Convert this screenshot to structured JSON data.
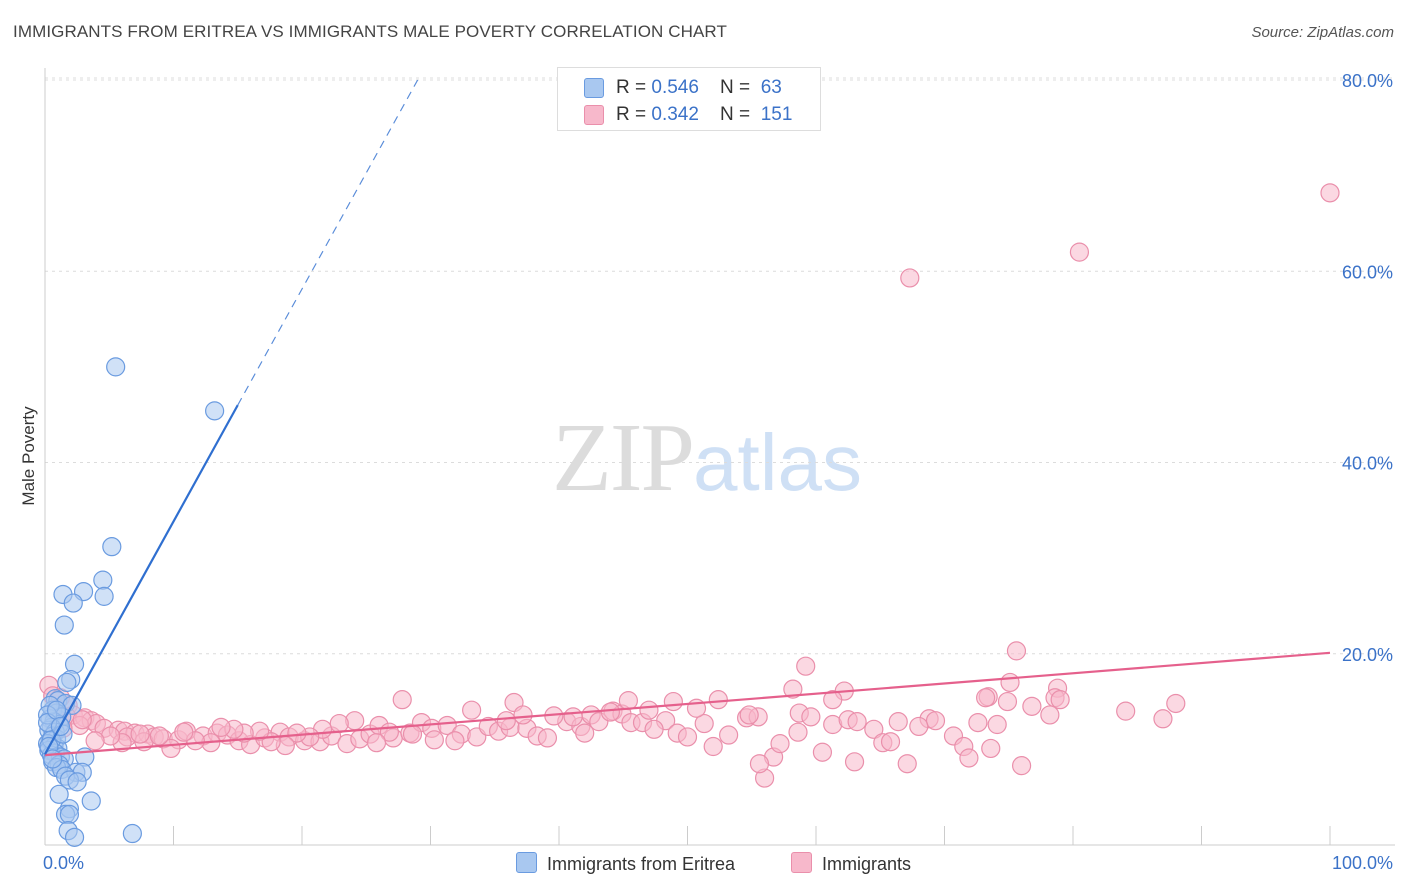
{
  "title": "IMMIGRANTS FROM ERITREA VS IMMIGRANTS MALE POVERTY CORRELATION CHART",
  "source": "Source: ZipAtlas.com",
  "watermark": {
    "zip": "ZIP",
    "atlas": "atlas"
  },
  "legend": [
    {
      "r_label": "R = ",
      "r_value": "0.546",
      "n_label": "N = ",
      "n_value": "63",
      "color": "#a9c8f0",
      "border": "#6a9be0"
    },
    {
      "r_label": "R = ",
      "r_value": "0.342",
      "n_label": "N = ",
      "n_value": "151",
      "color": "#f7b8cb",
      "border": "#ea8fab"
    }
  ],
  "bottom_legend": [
    {
      "label": "Immigrants from Eritrea",
      "color": "#a9c8f0",
      "border": "#6a9be0"
    },
    {
      "label": "Immigrants",
      "color": "#f7b8cb",
      "border": "#ea8fab"
    }
  ],
  "chart_data": {
    "type": "scatter",
    "title": "IMMIGRANTS FROM ERITREA VS IMMIGRANTS MALE POVERTY CORRELATION CHART",
    "xlabel": "",
    "ylabel": "Male Poverty",
    "xlim": [
      0,
      100
    ],
    "ylim": [
      0,
      80
    ],
    "x_tick_labels": [
      "0.0%",
      "100.0%"
    ],
    "y_ticks": [
      20,
      40,
      60,
      80
    ],
    "y_tick_labels": [
      "20.0%",
      "40.0%",
      "60.0%",
      "80.0%"
    ],
    "grid": "horizontal dashed",
    "series": [
      {
        "name": "Immigrants from Eritrea",
        "color": "#a9c8f0",
        "stroke": "#6a9be0",
        "line_color": "#2f6fd0",
        "trend": {
          "x0": 0,
          "y0": 9.5,
          "x1": 15,
          "y1": 46,
          "dashed_to": [
            29,
            80
          ]
        },
        "points": [
          [
            5.5,
            50
          ],
          [
            13.2,
            45.4
          ],
          [
            5.2,
            31.2
          ],
          [
            4.5,
            27.7
          ],
          [
            3.0,
            26.5
          ],
          [
            1.4,
            26.2
          ],
          [
            2.2,
            25.3
          ],
          [
            4.6,
            26.0
          ],
          [
            1.5,
            23.0
          ],
          [
            2.3,
            18.9
          ],
          [
            2.0,
            17.3
          ],
          [
            1.7,
            17.0
          ],
          [
            0.8,
            15.3
          ],
          [
            1.0,
            15.1
          ],
          [
            1.6,
            14.8
          ],
          [
            2.1,
            14.6
          ],
          [
            0.6,
            14.1
          ],
          [
            0.9,
            13.8
          ],
          [
            1.3,
            13.4
          ],
          [
            0.4,
            13.2
          ],
          [
            0.7,
            12.9
          ],
          [
            1.1,
            12.6
          ],
          [
            0.5,
            12.3
          ],
          [
            0.3,
            12.0
          ],
          [
            0.8,
            11.8
          ],
          [
            0.6,
            11.4
          ],
          [
            0.9,
            11.1
          ],
          [
            0.4,
            10.9
          ],
          [
            0.2,
            10.6
          ],
          [
            0.7,
            10.3
          ],
          [
            1.0,
            10.1
          ],
          [
            0.3,
            9.9
          ],
          [
            0.8,
            9.6
          ],
          [
            0.5,
            9.4
          ],
          [
            1.2,
            9.2
          ],
          [
            1.5,
            9.0
          ],
          [
            0.6,
            8.7
          ],
          [
            1.1,
            8.4
          ],
          [
            0.9,
            8.1
          ],
          [
            3.1,
            9.2
          ],
          [
            1.3,
            7.9
          ],
          [
            2.4,
            7.6
          ],
          [
            2.9,
            7.6
          ],
          [
            1.6,
            7.2
          ],
          [
            1.9,
            6.8
          ],
          [
            2.5,
            6.6
          ],
          [
            1.1,
            5.3
          ],
          [
            3.6,
            4.6
          ],
          [
            1.9,
            3.8
          ],
          [
            1.6,
            3.2
          ],
          [
            1.9,
            3.2
          ],
          [
            1.8,
            1.5
          ],
          [
            2.3,
            0.8
          ],
          [
            6.8,
            1.2
          ],
          [
            0.4,
            14.6
          ],
          [
            0.2,
            13.6
          ],
          [
            0.5,
            11.0
          ],
          [
            0.3,
            10.3
          ],
          [
            0.6,
            9.0
          ],
          [
            0.2,
            12.8
          ],
          [
            1.4,
            11.6
          ],
          [
            0.9,
            14.1
          ],
          [
            1.2,
            12.4
          ]
        ]
      },
      {
        "name": "Immigrants",
        "color": "#f7b8cb",
        "stroke": "#ea8fab",
        "line_color": "#e5608c",
        "trend": {
          "x0": 0,
          "y0": 9.4,
          "x1": 100,
          "y1": 20.1
        },
        "points": [
          [
            100,
            68.2
          ],
          [
            80.5,
            62.0
          ],
          [
            67.3,
            59.3
          ],
          [
            75.6,
            20.3
          ],
          [
            59.2,
            18.7
          ],
          [
            75.1,
            17.0
          ],
          [
            78.8,
            16.4
          ],
          [
            58.2,
            16.3
          ],
          [
            62.2,
            16.1
          ],
          [
            73.4,
            15.5
          ],
          [
            78.6,
            15.4
          ],
          [
            61.3,
            15.2
          ],
          [
            73.2,
            15.4
          ],
          [
            74.9,
            15.0
          ],
          [
            52.4,
            15.2
          ],
          [
            27.8,
            15.2
          ],
          [
            36.5,
            14.9
          ],
          [
            1.8,
            14.6
          ],
          [
            0.3,
            16.7
          ],
          [
            0.6,
            15.6
          ],
          [
            1.2,
            15.4
          ],
          [
            2.2,
            13.6
          ],
          [
            1.7,
            13.4
          ],
          [
            3.1,
            13.3
          ],
          [
            3.6,
            13.0
          ],
          [
            4.0,
            12.7
          ],
          [
            2.7,
            12.5
          ],
          [
            4.6,
            12.2
          ],
          [
            5.7,
            12.0
          ],
          [
            6.2,
            11.9
          ],
          [
            7.0,
            11.7
          ],
          [
            8.0,
            11.6
          ],
          [
            8.5,
            11.3
          ],
          [
            9.2,
            11.1
          ],
          [
            10.4,
            11.0
          ],
          [
            6.4,
            11.3
          ],
          [
            7.7,
            10.8
          ],
          [
            11.0,
            11.9
          ],
          [
            12.3,
            11.4
          ],
          [
            13.4,
            11.7
          ],
          [
            14.2,
            11.5
          ],
          [
            15.1,
            10.9
          ],
          [
            16.0,
            10.5
          ],
          [
            17.1,
            11.2
          ],
          [
            18.3,
            11.8
          ],
          [
            19.0,
            11.3
          ],
          [
            20.2,
            10.9
          ],
          [
            21.4,
            10.8
          ],
          [
            22.3,
            11.4
          ],
          [
            23.5,
            10.6
          ],
          [
            24.5,
            11.1
          ],
          [
            25.3,
            11.6
          ],
          [
            26.0,
            12.5
          ],
          [
            27.1,
            11.2
          ],
          [
            28.4,
            11.7
          ],
          [
            29.3,
            12.8
          ],
          [
            30.1,
            12.2
          ],
          [
            31.3,
            12.5
          ],
          [
            32.4,
            11.6
          ],
          [
            33.6,
            11.3
          ],
          [
            34.5,
            12.4
          ],
          [
            35.3,
            11.9
          ],
          [
            36.2,
            12.3
          ],
          [
            37.5,
            12.2
          ],
          [
            38.3,
            11.4
          ],
          [
            39.1,
            11.2
          ],
          [
            40.6,
            12.9
          ],
          [
            41.7,
            12.4
          ],
          [
            42.5,
            13.6
          ],
          [
            43.1,
            12.9
          ],
          [
            44.2,
            14.0
          ],
          [
            44.9,
            13.7
          ],
          [
            45.6,
            12.8
          ],
          [
            46.5,
            12.8
          ],
          [
            47.0,
            14.1
          ],
          [
            48.3,
            13.0
          ],
          [
            49.2,
            11.7
          ],
          [
            50.0,
            11.3
          ],
          [
            51.3,
            12.7
          ],
          [
            52.0,
            10.3
          ],
          [
            53.2,
            11.5
          ],
          [
            54.6,
            13.3
          ],
          [
            55.5,
            13.4
          ],
          [
            56.7,
            9.2
          ],
          [
            57.2,
            10.6
          ],
          [
            58.7,
            13.8
          ],
          [
            59.6,
            13.4
          ],
          [
            60.5,
            9.7
          ],
          [
            61.3,
            12.6
          ],
          [
            62.5,
            13.1
          ],
          [
            63.2,
            12.9
          ],
          [
            64.5,
            12.1
          ],
          [
            65.2,
            10.7
          ],
          [
            65.8,
            10.8
          ],
          [
            66.4,
            12.9
          ],
          [
            67.1,
            8.5
          ],
          [
            68.8,
            13.2
          ],
          [
            69.3,
            13.0
          ],
          [
            70.7,
            11.4
          ],
          [
            71.5,
            10.3
          ],
          [
            71.9,
            9.1
          ],
          [
            72.6,
            12.8
          ],
          [
            73.6,
            10.1
          ],
          [
            74.1,
            12.6
          ],
          [
            76.0,
            8.3
          ],
          [
            76.8,
            14.5
          ],
          [
            78.2,
            13.6
          ],
          [
            84.1,
            14.0
          ],
          [
            87.0,
            13.2
          ],
          [
            88.0,
            14.8
          ],
          [
            56.0,
            7.0
          ],
          [
            63.0,
            8.7
          ],
          [
            55.6,
            8.5
          ],
          [
            54.8,
            13.6
          ],
          [
            50.7,
            14.3
          ],
          [
            48.9,
            15.0
          ],
          [
            45.4,
            15.1
          ],
          [
            44.0,
            13.9
          ],
          [
            41.1,
            13.4
          ],
          [
            39.6,
            13.5
          ],
          [
            37.2,
            13.6
          ],
          [
            33.2,
            14.1
          ],
          [
            31.9,
            10.9
          ],
          [
            30.3,
            11.0
          ],
          [
            28.6,
            11.6
          ],
          [
            26.8,
            11.8
          ],
          [
            25.8,
            10.7
          ],
          [
            24.1,
            13.0
          ],
          [
            22.9,
            12.7
          ],
          [
            21.6,
            12.1
          ],
          [
            20.6,
            11.3
          ],
          [
            19.6,
            11.7
          ],
          [
            18.7,
            10.4
          ],
          [
            17.6,
            10.8
          ],
          [
            16.7,
            11.9
          ],
          [
            15.5,
            11.7
          ],
          [
            14.7,
            12.1
          ],
          [
            13.7,
            12.3
          ],
          [
            12.9,
            10.7
          ],
          [
            11.7,
            10.9
          ],
          [
            10.8,
            11.8
          ],
          [
            9.8,
            10.1
          ],
          [
            8.9,
            11.4
          ],
          [
            7.4,
            11.6
          ],
          [
            6.0,
            10.7
          ],
          [
            5.1,
            11.4
          ],
          [
            3.9,
            10.9
          ],
          [
            2.9,
            13.1
          ],
          [
            1.4,
            12.2
          ],
          [
            0.9,
            14.3
          ],
          [
            47.4,
            12.1
          ],
          [
            42.0,
            11.7
          ],
          [
            35.9,
            13.0
          ],
          [
            58.6,
            11.8
          ],
          [
            68.0,
            12.4
          ],
          [
            79.0,
            15.2
          ]
        ]
      }
    ]
  }
}
